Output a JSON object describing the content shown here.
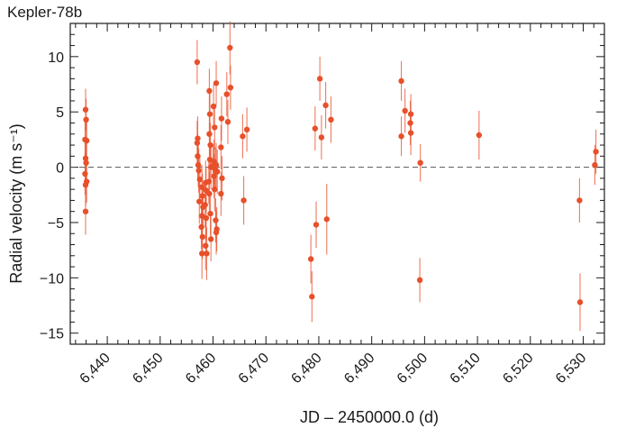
{
  "chart_data": {
    "type": "scatter",
    "title": "Kepler-78b",
    "xlabel": "JD – 2450000.0 (d)",
    "ylabel": "Radial velocity (m s⁻¹)",
    "xlim": [
      6433,
      6534
    ],
    "ylim": [
      -16,
      13
    ],
    "x_ticks": [
      6440,
      6450,
      6460,
      6470,
      6480,
      6490,
      6500,
      6510,
      6520,
      6530
    ],
    "x_tick_labels": [
      "6,440",
      "6,450",
      "6,460",
      "6,470",
      "6,480",
      "6,490",
      "6,500",
      "6,510",
      "6,520",
      "6,530"
    ],
    "y_ticks": [
      -15,
      -10,
      -5,
      0,
      5,
      10
    ],
    "y_tick_labels": [
      "−15",
      "−10",
      "−5",
      "0",
      "5",
      "10"
    ],
    "reference_line": {
      "y": 0,
      "style": "dashed"
    },
    "grid": false,
    "series": [
      {
        "color": "#e8502a",
        "points": [
          {
            "x": 6435.9,
            "y": 5.2,
            "err": 1.9
          },
          {
            "x": 6436.0,
            "y": 4.3,
            "err": 1.9
          },
          {
            "x": 6435.8,
            "y": 2.5,
            "err": 1.9
          },
          {
            "x": 6436.1,
            "y": 2.4,
            "err": 1.9
          },
          {
            "x": 6435.9,
            "y": 0.8,
            "err": 1.9
          },
          {
            "x": 6436.0,
            "y": 0.4,
            "err": 1.9
          },
          {
            "x": 6435.8,
            "y": -0.6,
            "err": 1.9
          },
          {
            "x": 6436.1,
            "y": -1.3,
            "err": 1.9
          },
          {
            "x": 6435.9,
            "y": -1.6,
            "err": 1.9
          },
          {
            "x": 6435.9,
            "y": -4.0,
            "err": 2.1
          },
          {
            "x": 6457.0,
            "y": 9.5,
            "err": 2.0
          },
          {
            "x": 6457.1,
            "y": 2.6,
            "err": 2.0
          },
          {
            "x": 6457.0,
            "y": 2.2,
            "err": 2.0
          },
          {
            "x": 6457.1,
            "y": 1.0,
            "err": 2.0
          },
          {
            "x": 6457.2,
            "y": 0.2,
            "err": 2.0
          },
          {
            "x": 6457.3,
            "y": -0.3,
            "err": 2.0
          },
          {
            "x": 6457.5,
            "y": -1.1,
            "err": 2.0
          },
          {
            "x": 6457.4,
            "y": -3.1,
            "err": 2.0
          },
          {
            "x": 6457.9,
            "y": -1.8,
            "err": 2.0
          },
          {
            "x": 6458.0,
            "y": -2.6,
            "err": 2.0
          },
          {
            "x": 6458.1,
            "y": -3.6,
            "err": 2.0
          },
          {
            "x": 6457.9,
            "y": -4.4,
            "err": 2.0
          },
          {
            "x": 6457.8,
            "y": -5.4,
            "err": 2.0
          },
          {
            "x": 6458.0,
            "y": -6.3,
            "err": 2.0
          },
          {
            "x": 6457.9,
            "y": -7.8,
            "err": 2.3
          },
          {
            "x": 6458.6,
            "y": -1.4,
            "err": 2.0
          },
          {
            "x": 6458.7,
            "y": -2.1,
            "err": 2.0
          },
          {
            "x": 6458.5,
            "y": -3.4,
            "err": 2.0
          },
          {
            "x": 6458.7,
            "y": -4.6,
            "err": 2.0
          },
          {
            "x": 6458.6,
            "y": -7.1,
            "err": 2.2
          },
          {
            "x": 6458.8,
            "y": -7.8,
            "err": 2.4
          },
          {
            "x": 6459.3,
            "y": 6.9,
            "err": 2.0
          },
          {
            "x": 6459.4,
            "y": 4.8,
            "err": 2.0
          },
          {
            "x": 6459.3,
            "y": 3.0,
            "err": 2.0
          },
          {
            "x": 6459.5,
            "y": 2.0,
            "err": 2.0
          },
          {
            "x": 6459.4,
            "y": 0.7,
            "err": 2.0
          },
          {
            "x": 6459.6,
            "y": 0.0,
            "err": 2.0
          },
          {
            "x": 6459.2,
            "y": -1.3,
            "err": 2.0
          },
          {
            "x": 6459.3,
            "y": -2.4,
            "err": 2.0
          },
          {
            "x": 6459.5,
            "y": -4.2,
            "err": 2.0
          },
          {
            "x": 6459.6,
            "y": -6.5,
            "err": 2.0
          },
          {
            "x": 6460.1,
            "y": 5.5,
            "err": 2.0
          },
          {
            "x": 6460.3,
            "y": 3.6,
            "err": 2.0
          },
          {
            "x": 6460.2,
            "y": 0.5,
            "err": 2.0
          },
          {
            "x": 6460.0,
            "y": 0.1,
            "err": 2.0
          },
          {
            "x": 6460.4,
            "y": -0.2,
            "err": 2.0
          },
          {
            "x": 6460.2,
            "y": -0.8,
            "err": 2.0
          },
          {
            "x": 6460.3,
            "y": -2.0,
            "err": 2.0
          },
          {
            "x": 6460.6,
            "y": 7.6,
            "err": 2.0
          },
          {
            "x": 6460.6,
            "y": 0.2,
            "err": 2.0
          },
          {
            "x": 6460.8,
            "y": -0.4,
            "err": 2.0
          },
          {
            "x": 6460.5,
            "y": -4.8,
            "err": 2.0
          },
          {
            "x": 6460.7,
            "y": -5.6,
            "err": 2.0
          },
          {
            "x": 6460.6,
            "y": -5.9,
            "err": 2.0
          },
          {
            "x": 6461.6,
            "y": 4.4,
            "err": 2.0
          },
          {
            "x": 6461.5,
            "y": 1.8,
            "err": 2.0
          },
          {
            "x": 6461.7,
            "y": -1.0,
            "err": 2.0
          },
          {
            "x": 6461.5,
            "y": -2.4,
            "err": 2.0
          },
          {
            "x": 6462.6,
            "y": 6.6,
            "err": 2.0
          },
          {
            "x": 6462.8,
            "y": 4.1,
            "err": 2.0
          },
          {
            "x": 6463.2,
            "y": 10.8,
            "err": 2.4
          },
          {
            "x": 6463.3,
            "y": 7.2,
            "err": 2.0
          },
          {
            "x": 6465.6,
            "y": 2.8,
            "err": 2.0
          },
          {
            "x": 6465.8,
            "y": -3.0,
            "err": 2.2
          },
          {
            "x": 6466.4,
            "y": 3.4,
            "err": 2.0
          },
          {
            "x": 6478.5,
            "y": -8.3,
            "err": 2.2
          },
          {
            "x": 6478.7,
            "y": -11.7,
            "err": 2.3
          },
          {
            "x": 6479.3,
            "y": 3.5,
            "err": 2.0
          },
          {
            "x": 6479.5,
            "y": -5.2,
            "err": 2.1
          },
          {
            "x": 6480.2,
            "y": 8.0,
            "err": 2.0
          },
          {
            "x": 6480.5,
            "y": 2.7,
            "err": 2.0
          },
          {
            "x": 6481.3,
            "y": 5.6,
            "err": 2.1
          },
          {
            "x": 6481.5,
            "y": -4.7,
            "err": 3.2
          },
          {
            "x": 6482.3,
            "y": 4.3,
            "err": 2.1
          },
          {
            "x": 6495.6,
            "y": 7.8,
            "err": 1.8
          },
          {
            "x": 6495.6,
            "y": 2.8,
            "err": 1.8
          },
          {
            "x": 6496.3,
            "y": 5.1,
            "err": 2.0
          },
          {
            "x": 6497.3,
            "y": 4.0,
            "err": 2.0
          },
          {
            "x": 6497.4,
            "y": 3.1,
            "err": 2.0
          },
          {
            "x": 6497.4,
            "y": 4.8,
            "err": 1.8
          },
          {
            "x": 6499.2,
            "y": 0.4,
            "err": 1.7
          },
          {
            "x": 6499.1,
            "y": -10.2,
            "err": 2.0
          },
          {
            "x": 6510.3,
            "y": 2.9,
            "err": 2.2
          },
          {
            "x": 6529.3,
            "y": -3.0,
            "err": 2.0
          },
          {
            "x": 6529.4,
            "y": -12.2,
            "err": 2.6
          },
          {
            "x": 6532.2,
            "y": 0.2,
            "err": 1.8
          },
          {
            "x": 6532.4,
            "y": 1.4,
            "err": 2.0
          }
        ]
      }
    ]
  }
}
